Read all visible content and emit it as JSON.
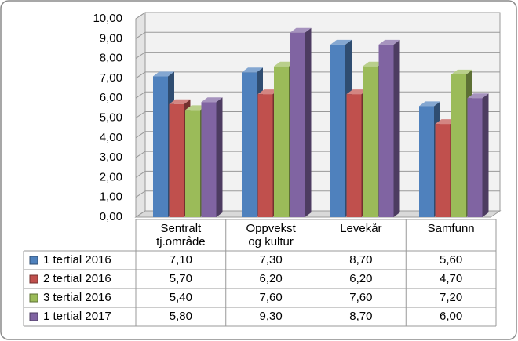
{
  "chart_data": {
    "type": "bar3d",
    "categories": [
      "Sentralt tj.område",
      "Oppvekst og kultur",
      "Levekår",
      "Samfunn"
    ],
    "series": [
      {
        "name": "1 tertial 2016",
        "color": "#4f81bd",
        "values": [
          7.1,
          7.3,
          8.7,
          5.6
        ],
        "value_labels": [
          "7,10",
          "7,30",
          "8,70",
          "5,60"
        ]
      },
      {
        "name": "2 tertial 2016",
        "color": "#c0504d",
        "values": [
          5.7,
          6.2,
          6.2,
          4.7
        ],
        "value_labels": [
          "5,70",
          "6,20",
          "6,20",
          "4,70"
        ]
      },
      {
        "name": "3 tertial 2016",
        "color": "#9bbb59",
        "values": [
          5.4,
          7.6,
          7.6,
          7.2
        ],
        "value_labels": [
          "5,40",
          "7,60",
          "7,60",
          "7,20"
        ]
      },
      {
        "name": "1 tertial 2017",
        "color": "#8064a2",
        "values": [
          5.8,
          9.3,
          8.7,
          6.0
        ],
        "value_labels": [
          "5,80",
          "9,30",
          "8,70",
          "6,00"
        ]
      }
    ],
    "ylim": [
      0,
      10
    ],
    "yticks": [
      {
        "value": 0,
        "label": "0,00"
      },
      {
        "value": 1,
        "label": "1,00"
      },
      {
        "value": 2,
        "label": "2,00"
      },
      {
        "value": 3,
        "label": "3,00"
      },
      {
        "value": 4,
        "label": "4,00"
      },
      {
        "value": 5,
        "label": "5,00"
      },
      {
        "value": 6,
        "label": "6,00"
      },
      {
        "value": 7,
        "label": "7,00"
      },
      {
        "value": 8,
        "label": "8,00"
      },
      {
        "value": 9,
        "label": "9,00"
      },
      {
        "value": 10,
        "label": "10,00"
      }
    ],
    "grid": true
  }
}
